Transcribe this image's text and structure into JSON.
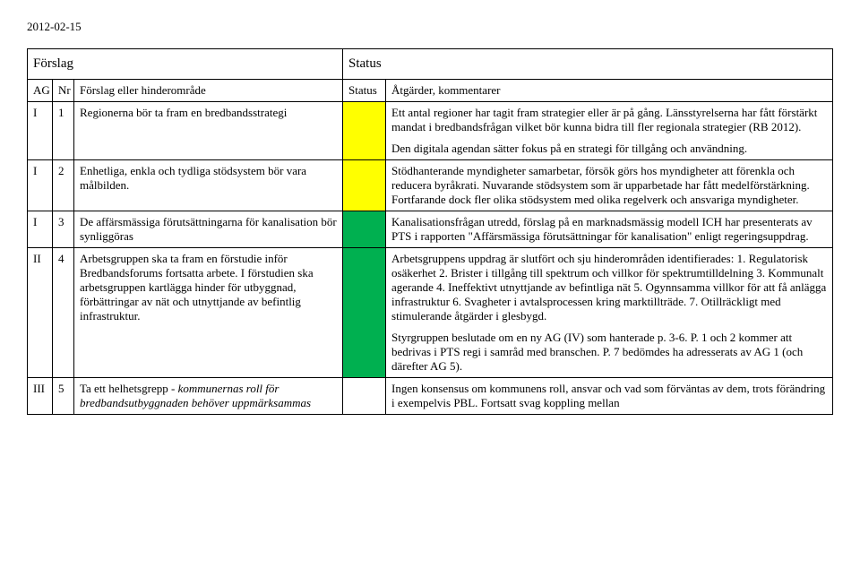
{
  "date": "2012-02-15",
  "header": {
    "forslag": "Förslag",
    "status": "Status"
  },
  "subheader": {
    "ag": "AG",
    "nr": "Nr",
    "forslag": "Förslag eller hinderområde",
    "status": "Status",
    "atgard": "Åtgärder, kommentarer"
  },
  "rows": [
    {
      "ag": "I",
      "nr": "1",
      "forslag": "Regionerna bör ta fram en bredbandsstrategi",
      "status_color": "#ffff00",
      "atgard_p1": "Ett antal regioner har tagit fram strategier eller är på gång. Länsstyrelserna har fått förstärkt mandat i bredbandsfrågan vilket bör kunna bidra till fler regionala strategier (RB 2012).",
      "atgard_p2": "Den digitala agendan sätter fokus på en strategi för tillgång och användning."
    },
    {
      "ag": "I",
      "nr": "2",
      "forslag": "Enhetliga, enkla och tydliga stödsystem bör vara målbilden.",
      "status_color": "#ffff00",
      "atgard": "Stödhanterande myndigheter samarbetar, försök görs hos myndigheter att förenkla och reducera byråkrati. Nuvarande stödsystem som är upparbetade har fått medelförstärkning. Fortfarande dock fler olika stödsystem med olika regelverk och ansvariga myndigheter."
    },
    {
      "ag": "I",
      "nr": "3",
      "forslag": "De affärsmässiga förutsättningarna för kanalisation bör synliggöras",
      "status_color": "#00b050",
      "atgard": "Kanalisationsfrågan utredd, förslag på en marknadsmässig modell ICH har presenterats av PTS i rapporten \"Affärsmässiga förutsättningar för kanalisation\" enligt regeringsuppdrag."
    },
    {
      "ag": "II",
      "nr": "4",
      "forslag": "Arbetsgruppen ska ta fram en förstudie inför Bredbandsforums fortsatta arbete. I förstudien ska arbetsgruppen kartlägga hinder för utbyggnad, förbättringar av nät och utnyttjande av befintlig infrastruktur.",
      "status_color": "#00b050",
      "atgard_p1": "Arbetsgruppens uppdrag är slutfört och sju hinderområden identifierades: 1. Regulatorisk osäkerhet 2. Brister i tillgång till spektrum och villkor för spektrumtilldelning 3. Kommunalt agerande 4. Ineffektivt utnyttjande av befintliga nät 5. Ogynnsamma villkor för att få anlägga infrastruktur 6. Svagheter i avtalsprocessen kring marktillträde. 7. Otillräckligt med stimulerande åtgärder i glesbygd.",
      "atgard_p2": "Styrgruppen beslutade om en ny AG (IV) som hanterade p. 3-6. P. 1 och 2 kommer att bedrivas i PTS regi i samråd med branschen. P. 7 bedömdes ha adresserats av AG 1 (och därefter AG 5)."
    },
    {
      "ag": "III",
      "nr": "5",
      "forslag_pre": "Ta ett helhetsgrepp - ",
      "forslag_italic": "kommunernas roll för bredbandsutbyggnaden behöver uppmärksammas",
      "status_color": "",
      "atgard": "Ingen konsensus om kommunens roll, ansvar och vad som förväntas av dem, trots förändring i exempelvis PBL. Fortsatt svag koppling mellan"
    }
  ]
}
